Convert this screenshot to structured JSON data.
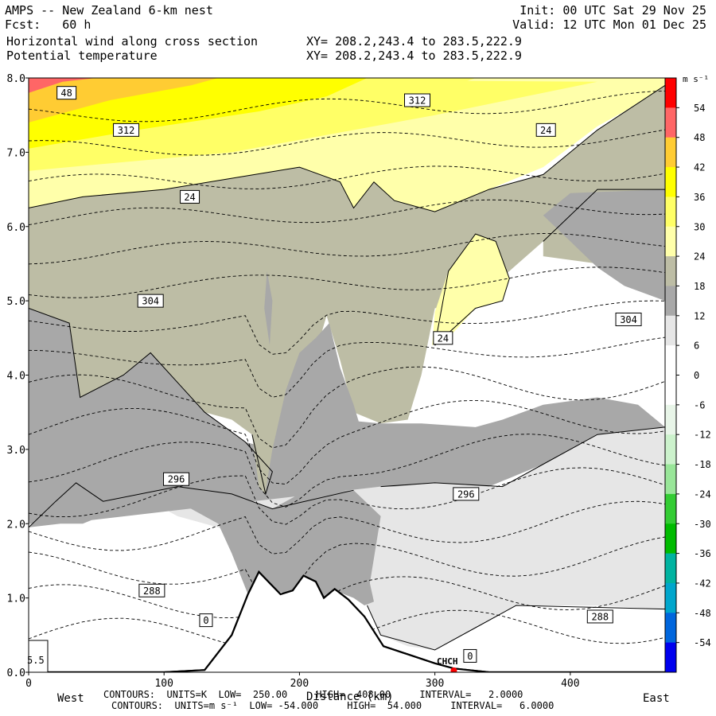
{
  "header": {
    "left_line1": "AMPS -- New Zealand 6-km nest",
    "left_line2": "Fcst:   60 h",
    "left_line3": "Horizontal wind along cross section",
    "left_line4": "Potential temperature",
    "right_line1": "Init: 00 UTC Sat 29 Nov 25",
    "right_line2": "Valid: 12 UTC Mon 01 Dec 25",
    "xy_line1": "XY= 208.2,243.4 to 283.5,222.9",
    "xy_line2": "XY= 208.2,243.4 to 283.5,222.9"
  },
  "footer": {
    "contours1": "CONTOURS:  UNITS=K  LOW=  250.00     HIGH=  408.00     INTERVAL=   2.0000",
    "contours2": "CONTOURS:  UNITS=m s⁻¹  LOW= -54.000     HIGH=  54.000     INTERVAL=   6.0000"
  },
  "chart_data": {
    "type": "heatmap",
    "title": "AMPS -- New Zealand 6-km nest",
    "xlabel": "Distance (km)",
    "ylabel": "",
    "xlim": [
      0,
      470
    ],
    "ylim": [
      0,
      8
    ],
    "x_ticks": [
      0,
      100,
      200,
      300,
      400
    ],
    "y_ticks": [
      0,
      1,
      2,
      3,
      4,
      5,
      6,
      7,
      8
    ],
    "y_tick_labels": [
      "0.0",
      "1.0",
      "2.0",
      "3.0",
      "4.0",
      "5.0",
      "6.0",
      "7.0",
      "8.0"
    ],
    "x_end_labels": {
      "west": "West",
      "east": "East"
    },
    "station": {
      "label": "CHCH",
      "x_km": 314,
      "color": "#ff0000"
    },
    "corner_label": "5.5",
    "colorbar": {
      "unit": "m s⁻¹",
      "tick_labels": [
        "54",
        "48",
        "42",
        "36",
        "30",
        "24",
        "18",
        "12",
        "6",
        "0",
        "-6",
        "-12",
        "-18",
        "-24",
        "-30",
        "-36",
        "-42",
        "-48",
        "-54"
      ],
      "bands": [
        {
          "low": 54,
          "high": 60,
          "color": "#ff0000"
        },
        {
          "low": 48,
          "high": 54,
          "color": "#ff6666"
        },
        {
          "low": 42,
          "high": 48,
          "color": "#ffcc33"
        },
        {
          "low": 36,
          "high": 42,
          "color": "#ffff00"
        },
        {
          "low": 30,
          "high": 36,
          "color": "#ffff66"
        },
        {
          "low": 24,
          "high": 30,
          "color": "#ffffaa"
        },
        {
          "low": 18,
          "high": 24,
          "color": "#bdbda5"
        },
        {
          "low": 12,
          "high": 18,
          "color": "#a8a8a8"
        },
        {
          "low": 6,
          "high": 12,
          "color": "#e6e6e6"
        },
        {
          "low": 0,
          "high": 6,
          "color": "#ffffff"
        },
        {
          "low": -6,
          "high": 0,
          "color": "#ffffff"
        },
        {
          "low": -12,
          "high": -6,
          "color": "#e8f5e8"
        },
        {
          "low": -18,
          "high": -12,
          "color": "#ccf2cc"
        },
        {
          "low": -24,
          "high": -18,
          "color": "#99e699"
        },
        {
          "low": -30,
          "high": -24,
          "color": "#33cc33"
        },
        {
          "low": -36,
          "high": -30,
          "color": "#00bb00"
        },
        {
          "low": -42,
          "high": -36,
          "color": "#00b3a0"
        },
        {
          "low": -48,
          "high": -42,
          "color": "#00a6cc"
        },
        {
          "low": -54,
          "high": -48,
          "color": "#0066dd"
        },
        {
          "low": -60,
          "high": -54,
          "color": "#0000ee"
        }
      ]
    },
    "wind_bands_km": {
      "red_48": {
        "value_ms": 48,
        "color": "#ff6666",
        "top_outline": [
          [
            0,
            7.9
          ],
          [
            30,
            8.0
          ],
          [
            0,
            8.0
          ]
        ]
      },
      "orange_42": {
        "value_ms": 42,
        "color": "#ffcc33",
        "top_outline": [
          [
            0,
            7.4
          ],
          [
            60,
            7.75
          ],
          [
            130,
            8.0
          ],
          [
            0,
            8.0
          ]
        ]
      },
      "yellow_36": {
        "value_ms": 36,
        "color": "#ffff00",
        "top_outline": [
          [
            0,
            7.05
          ],
          [
            100,
            7.3
          ],
          [
            220,
            7.65
          ],
          [
            320,
            8.0
          ],
          [
            0,
            8.0
          ]
        ]
      },
      "yellow_30": {
        "value_ms": 30,
        "color": "#ffff66",
        "top_outline": [
          [
            0,
            6.75
          ],
          [
            150,
            7.0
          ],
          [
            300,
            7.5
          ],
          [
            420,
            7.95
          ],
          [
            0,
            8.0
          ]
        ]
      }
    },
    "wind_label_values": [
      48,
      312,
      24,
      304,
      24,
      304,
      296,
      296,
      288,
      288,
      0,
      0,
      312,
      24
    ],
    "contour_labels": [
      {
        "text": "48",
        "x_km": 28,
        "z_km": 7.8
      },
      {
        "text": "312",
        "x_km": 72,
        "z_km": 7.3
      },
      {
        "text": "312",
        "x_km": 287,
        "z_km": 7.7
      },
      {
        "text": "24",
        "x_km": 382,
        "z_km": 7.3
      },
      {
        "text": "24",
        "x_km": 119,
        "z_km": 6.4
      },
      {
        "text": "304",
        "x_km": 90,
        "z_km": 5.0
      },
      {
        "text": "24",
        "x_km": 306,
        "z_km": 4.5
      },
      {
        "text": "304",
        "x_km": 443,
        "z_km": 4.75
      },
      {
        "text": "296",
        "x_km": 109,
        "z_km": 2.6
      },
      {
        "text": "296",
        "x_km": 323,
        "z_km": 2.4
      },
      {
        "text": "288",
        "x_km": 91,
        "z_km": 1.1
      },
      {
        "text": "288",
        "x_km": 422,
        "z_km": 0.75
      },
      {
        "text": "0",
        "x_km": 131,
        "z_km": 0.7
      },
      {
        "text": "0",
        "x_km": 326,
        "z_km": 0.22
      }
    ],
    "terrain_km": [
      [
        0,
        0
      ],
      [
        100,
        0
      ],
      [
        130,
        0.03
      ],
      [
        150,
        0.5
      ],
      [
        162,
        1.05
      ],
      [
        170,
        1.35
      ],
      [
        178,
        1.2
      ],
      [
        186,
        1.05
      ],
      [
        195,
        1.1
      ],
      [
        203,
        1.3
      ],
      [
        212,
        1.22
      ],
      [
        218,
        1.0
      ],
      [
        226,
        1.12
      ],
      [
        236,
        0.98
      ],
      [
        248,
        0.75
      ],
      [
        262,
        0.35
      ],
      [
        300,
        0.12
      ],
      [
        314,
        0.05
      ],
      [
        340,
        0
      ],
      [
        470,
        0
      ]
    ],
    "theta_levels_K": [
      288,
      296,
      304,
      312
    ],
    "theta_contours_K_step": 2
  }
}
